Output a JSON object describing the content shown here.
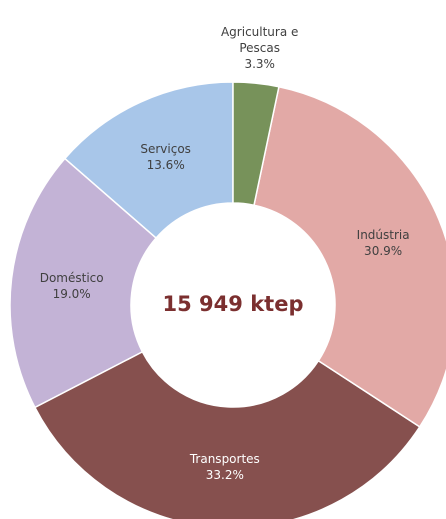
{
  "chart_data": {
    "type": "donut",
    "center_label": "15 949 ktep",
    "categories": [
      "Agricultura e Pescas",
      "Indústria",
      "Transportes",
      "Doméstico",
      "Serviços"
    ],
    "values": [
      3.3,
      30.9,
      33.2,
      19.0,
      13.6
    ],
    "value_labels": [
      "3.3%",
      "30.9%",
      "33.2%",
      "19.0%",
      "13.6%"
    ],
    "colors": [
      "#77925a",
      "#e2a9a6",
      "#86504e",
      "#c3b3d6",
      "#a8c6e9"
    ]
  }
}
